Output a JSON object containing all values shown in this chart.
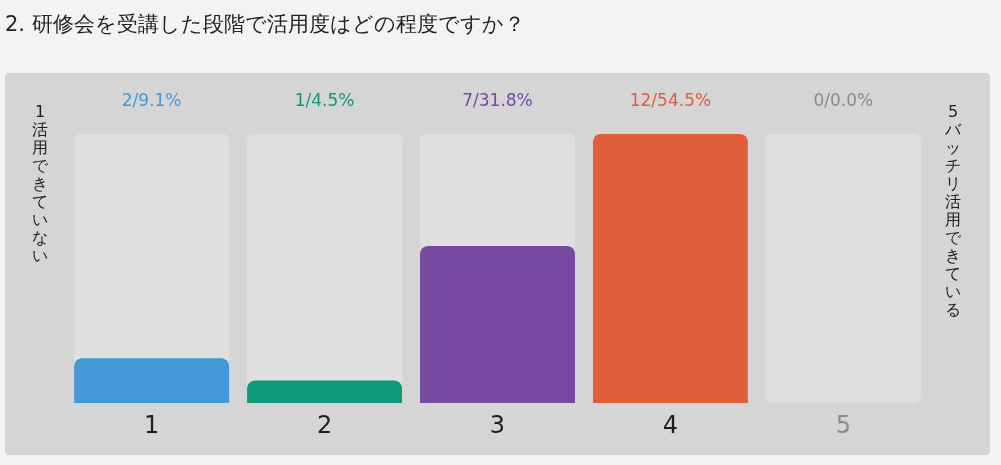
{
  "chart_data": {
    "type": "bar",
    "title": "2. 研修会を受講した段階で活用度はどの程度ですか？",
    "categories": [
      "1",
      "2",
      "3",
      "4",
      "5"
    ],
    "values": [
      2,
      1,
      7,
      12,
      0
    ],
    "colors": [
      "#4399d8",
      "#0e9a7b",
      "#774aa1",
      "#e05e39",
      "#8a8a8a"
    ],
    "value_labels": [
      "2/9.1%",
      "1/4.5%",
      "7/31.8%",
      "12/54.5%",
      "0/0.0%"
    ],
    "ylim": [
      0,
      12
    ],
    "tick_labels": "x",
    "bands": [
      {
        "axis": "x",
        "from": "1",
        "to": "1",
        "color": "#dfdfdf"
      },
      {
        "axis": "x",
        "from": "2",
        "to": "2",
        "color": "#dfdfdf"
      },
      {
        "axis": "x",
        "from": "3",
        "to": "3",
        "color": "#dfdfdf"
      },
      {
        "axis": "x",
        "from": "5",
        "to": "5",
        "color": "#dfdfdf"
      }
    ],
    "annotations": [
      "1 活用できていない",
      "5 バッチリ活用できている"
    ]
  }
}
